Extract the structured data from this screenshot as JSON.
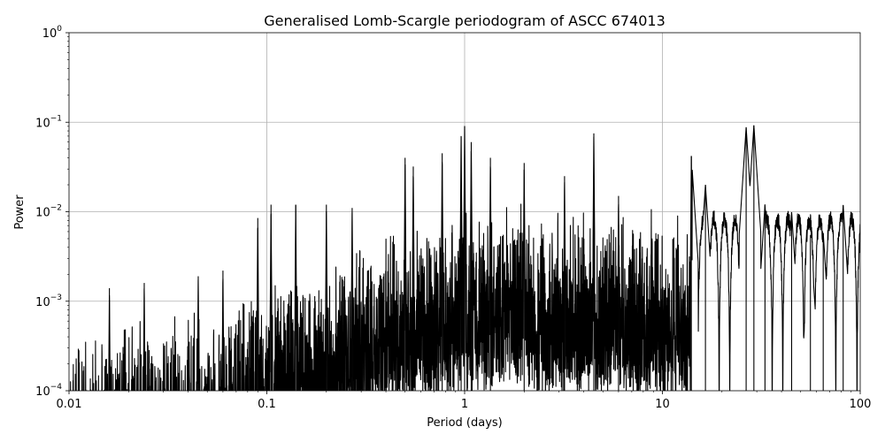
{
  "chart_data": {
    "type": "line",
    "title": "Generalised Lomb-Scargle periodogram of ASCC 674013",
    "xlabel": "Period (days)",
    "ylabel": "Power",
    "xscale": "log",
    "yscale": "log",
    "xlim": [
      0.01,
      100
    ],
    "ylim": [
      0.0001,
      1
    ],
    "grid": true,
    "xticks": [
      {
        "value": 0.01,
        "label": "0.01"
      },
      {
        "value": 0.1,
        "label": "0.1"
      },
      {
        "value": 1,
        "label": "1"
      },
      {
        "value": 10,
        "label": "10"
      },
      {
        "value": 100,
        "label": "100"
      }
    ],
    "yticks": [
      {
        "value": 0.0001,
        "base": "10",
        "exp": "−4"
      },
      {
        "value": 0.001,
        "base": "10",
        "exp": "−3"
      },
      {
        "value": 0.01,
        "base": "10",
        "exp": "−2"
      },
      {
        "value": 0.1,
        "base": "10",
        "exp": "−1"
      },
      {
        "value": 1,
        "base": "10",
        "exp": "0"
      }
    ],
    "line_color": "#000000",
    "peaks": [
      {
        "period": 0.016,
        "power": 0.0014
      },
      {
        "period": 0.024,
        "power": 0.0016
      },
      {
        "period": 0.045,
        "power": 0.0019
      },
      {
        "period": 0.06,
        "power": 0.0022
      },
      {
        "period": 0.09,
        "power": 0.0085
      },
      {
        "period": 0.105,
        "power": 0.012
      },
      {
        "period": 0.14,
        "power": 0.012
      },
      {
        "period": 0.2,
        "power": 0.012
      },
      {
        "period": 0.27,
        "power": 0.011
      },
      {
        "period": 0.5,
        "power": 0.04
      },
      {
        "period": 0.55,
        "power": 0.032
      },
      {
        "period": 0.77,
        "power": 0.045
      },
      {
        "period": 0.96,
        "power": 0.07
      },
      {
        "period": 1.0,
        "power": 0.09
      },
      {
        "period": 1.08,
        "power": 0.06
      },
      {
        "period": 1.35,
        "power": 0.04
      },
      {
        "period": 2.0,
        "power": 0.035
      },
      {
        "period": 3.2,
        "power": 0.025
      },
      {
        "period": 4.5,
        "power": 0.075
      },
      {
        "period": 6.0,
        "power": 0.015
      },
      {
        "period": 14.0,
        "power": 0.042
      },
      {
        "period": 16.5,
        "power": 0.02
      },
      {
        "period": 26.5,
        "power": 0.088
      },
      {
        "period": 29.0,
        "power": 0.092
      },
      {
        "period": 33.0,
        "power": 0.012
      },
      {
        "period": 45.0,
        "power": 0.0099
      },
      {
        "period": 56.0,
        "power": 0.0055
      },
      {
        "period": 65.0,
        "power": 0.0058
      },
      {
        "period": 82.0,
        "power": 0.0118
      }
    ]
  }
}
